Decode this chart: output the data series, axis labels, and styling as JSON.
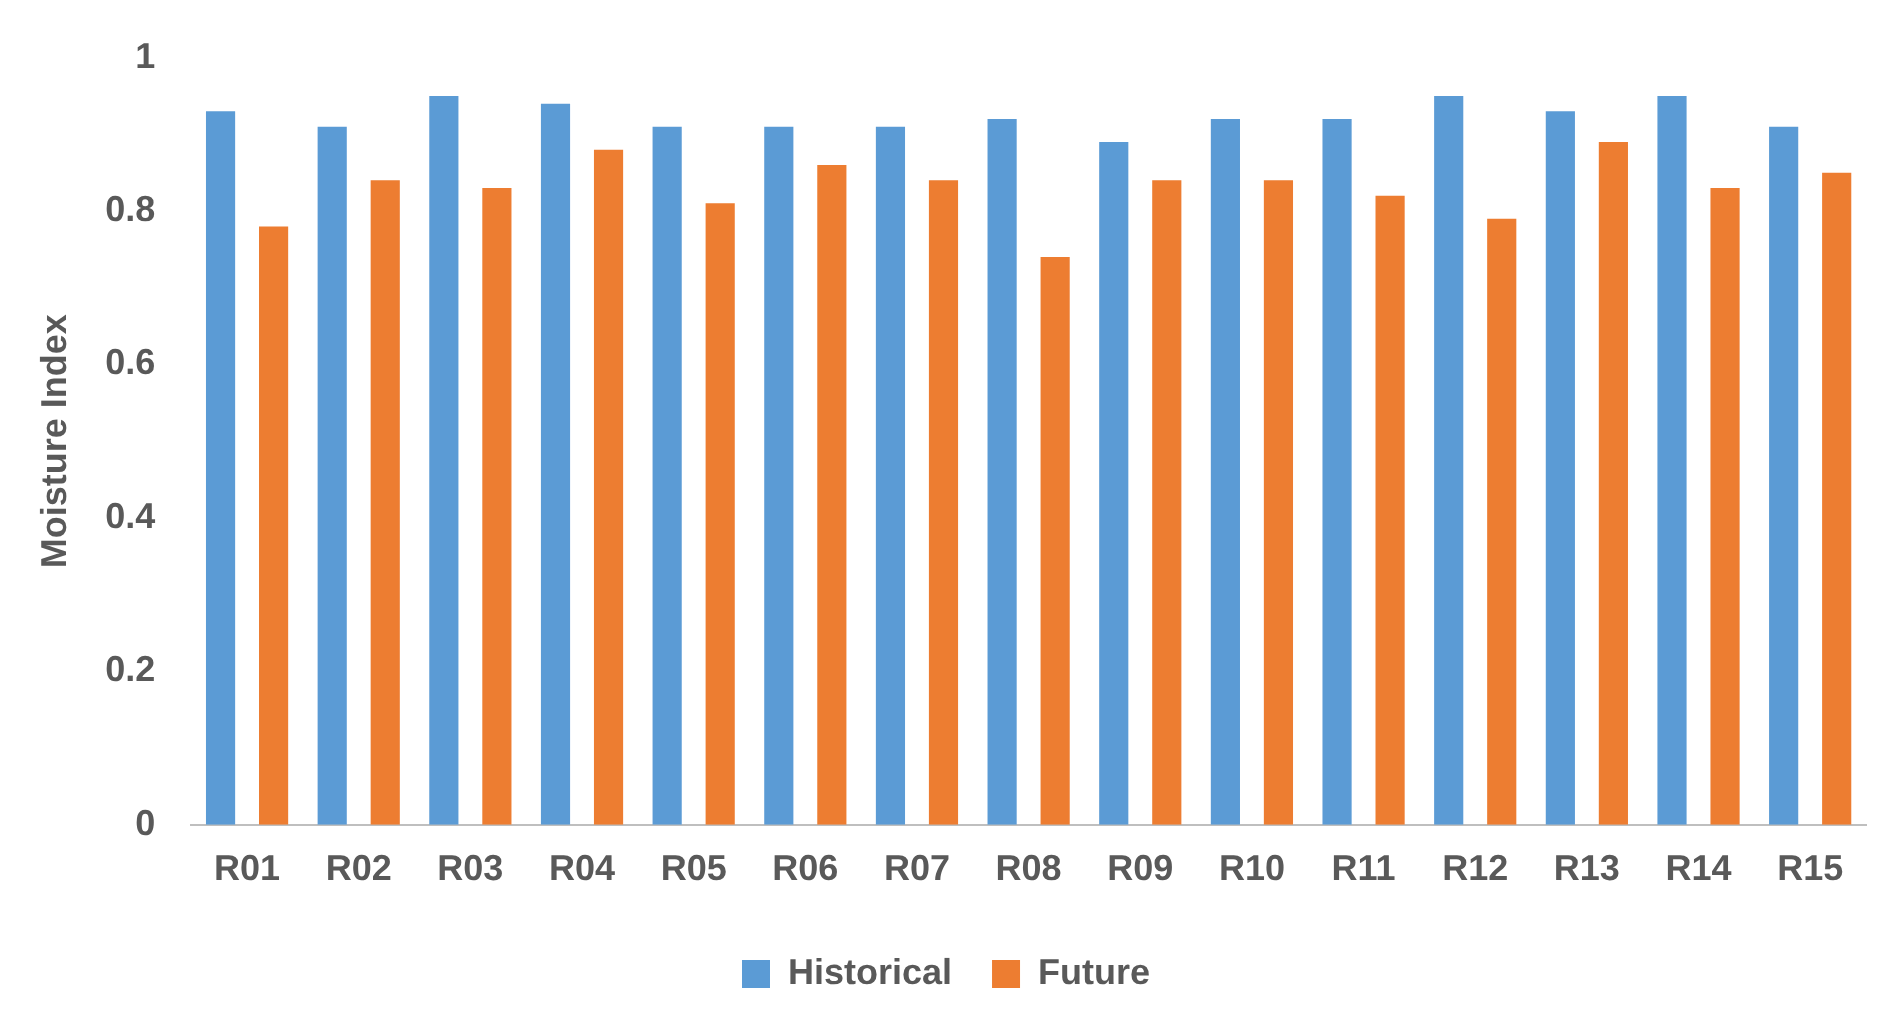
{
  "chart_data": {
    "type": "bar",
    "ylabel": "Moisture Index",
    "categories": [
      "R01",
      "R02",
      "R03",
      "R04",
      "R05",
      "R06",
      "R07",
      "R08",
      "R09",
      "R10",
      "R11",
      "R12",
      "R13",
      "R14",
      "R15"
    ],
    "series": [
      {
        "name": "Historical",
        "color": "#5b9bd5",
        "values": [
          0.93,
          0.91,
          0.95,
          0.94,
          0.91,
          0.91,
          0.91,
          0.92,
          0.89,
          0.92,
          0.92,
          0.95,
          0.93,
          0.95,
          0.91
        ]
      },
      {
        "name": "Future",
        "color": "#ed7d31",
        "values": [
          0.78,
          0.84,
          0.83,
          0.88,
          0.81,
          0.86,
          0.84,
          0.74,
          0.84,
          0.84,
          0.82,
          0.79,
          0.89,
          0.83,
          0.85
        ]
      }
    ],
    "ylim": [
      0,
      1
    ],
    "yticks": [
      0,
      0.2,
      0.4,
      0.6,
      0.8,
      1
    ],
    "grid": false,
    "legend": "bottom"
  }
}
